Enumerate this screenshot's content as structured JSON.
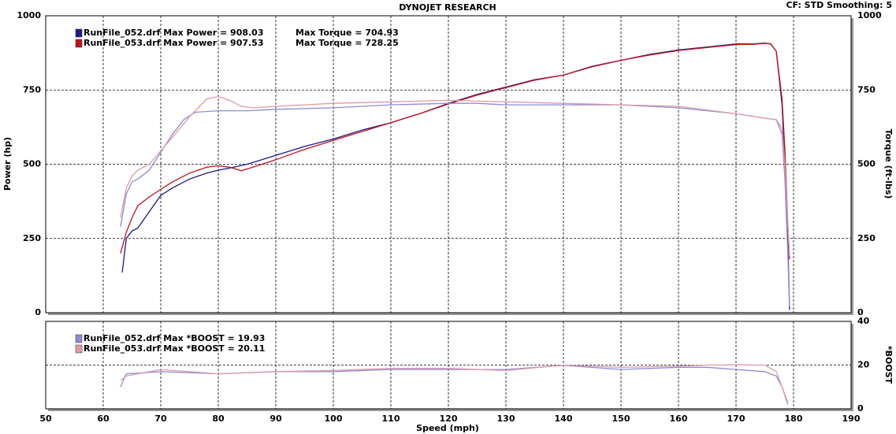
{
  "chart_data": [
    {
      "type": "line",
      "title": "DYNOJET RESEARCH",
      "subtitle": "CF: STD  Smoothing: 5",
      "ylabel": "Power (hp)",
      "y2label": "Torque (ft-lbs)",
      "xlim": [
        50,
        190
      ],
      "xticks": [
        50,
        60,
        70,
        80,
        90,
        100,
        110,
        120,
        130,
        140,
        150,
        160,
        170,
        180,
        190
      ],
      "ylim": [
        0,
        1000
      ],
      "yticks": [
        0,
        250,
        500,
        750,
        1000
      ],
      "y2lim": [
        0,
        1000
      ],
      "y2ticks": [
        0,
        250,
        500,
        750,
        1000
      ],
      "grid": true,
      "series": [
        {
          "name": "RunFile_052.drf Max Power = 908.03",
          "color": "#1a1a8c",
          "axis": "y",
          "x": [
            63.3,
            64,
            65,
            66,
            68,
            70,
            72,
            75,
            78,
            80,
            82,
            85,
            90,
            95,
            100,
            105,
            110,
            115,
            120,
            125,
            130,
            135,
            140,
            145,
            150,
            155,
            160,
            165,
            170,
            173,
            175,
            176,
            177,
            178,
            178.5,
            179,
            179.3
          ],
          "values": [
            135,
            250,
            275,
            285,
            340,
            395,
            420,
            450,
            470,
            480,
            487,
            500,
            530,
            560,
            585,
            615,
            640,
            670,
            705,
            735,
            760,
            785,
            800,
            830,
            850,
            870,
            885,
            895,
            905,
            905,
            908,
            905,
            880,
            700,
            500,
            250,
            10
          ]
        },
        {
          "name": "RunFile_053.drf Max Power = 907.53",
          "color": "#c0141c",
          "axis": "y",
          "x": [
            63,
            64,
            65,
            66,
            68,
            70,
            72,
            75,
            78,
            80,
            82,
            84,
            86,
            90,
            95,
            100,
            105,
            110,
            115,
            120,
            125,
            130,
            135,
            140,
            145,
            150,
            155,
            160,
            165,
            170,
            173,
            175,
            176,
            177,
            178,
            178.5,
            179,
            179.3
          ],
          "values": [
            200,
            270,
            320,
            360,
            390,
            415,
            440,
            470,
            490,
            495,
            490,
            478,
            490,
            515,
            550,
            580,
            610,
            640,
            670,
            703,
            733,
            758,
            783,
            800,
            828,
            850,
            868,
            883,
            893,
            903,
            904,
            907,
            906,
            880,
            720,
            550,
            300,
            180
          ]
        },
        {
          "name": "Max Torque = 704.93",
          "color": "#8c8cd8",
          "axis": "y2",
          "x": [
            63,
            64,
            65,
            66,
            68,
            70,
            72,
            74,
            76,
            80,
            85,
            90,
            100,
            110,
            120,
            125,
            130,
            140,
            150,
            160,
            170,
            175,
            177,
            178,
            178.5,
            179,
            179.3
          ],
          "values": [
            290,
            400,
            440,
            450,
            480,
            540,
            600,
            650,
            675,
            680,
            680,
            685,
            690,
            700,
            705,
            705,
            700,
            700,
            700,
            690,
            670,
            655,
            650,
            600,
            450,
            200,
            20
          ]
        },
        {
          "name": "Max Torque = 728.25",
          "color": "#e09aa8",
          "axis": "y2",
          "x": [
            63,
            64,
            65,
            66,
            68,
            70,
            72,
            75,
            78,
            80,
            82,
            84,
            86,
            90,
            100,
            110,
            120,
            130,
            140,
            150,
            160,
            170,
            175,
            177,
            178,
            178.5,
            179,
            179.3
          ],
          "values": [
            320,
            420,
            460,
            480,
            500,
            545,
            590,
            660,
            720,
            728,
            715,
            695,
            690,
            695,
            705,
            710,
            715,
            710,
            705,
            700,
            695,
            670,
            655,
            650,
            620,
            500,
            300,
            190
          ]
        }
      ]
    },
    {
      "type": "line",
      "xlabel": "Speed (mph)",
      "y2label": "*BOOST",
      "xlim": [
        50,
        190
      ],
      "xticks": [
        50,
        60,
        70,
        80,
        90,
        100,
        110,
        120,
        130,
        140,
        150,
        160,
        170,
        180,
        190
      ],
      "y2lim": [
        0,
        40
      ],
      "y2ticks": [
        0,
        20,
        40
      ],
      "grid": true,
      "series": [
        {
          "name": "RunFile_052.drf Max *BOOST = 19.93",
          "color": "#8c8cd8",
          "axis": "y2",
          "x": [
            63,
            64,
            70,
            80,
            90,
            100,
            110,
            120,
            130,
            140,
            150,
            160,
            165,
            170,
            175,
            177,
            178,
            179
          ],
          "values": [
            10,
            16,
            17,
            16,
            17,
            17,
            18,
            18,
            18,
            19.9,
            18,
            19,
            19,
            18,
            17,
            15,
            10,
            2
          ]
        },
        {
          "name": "RunFile_053.drf Max *BOOST = 20.11",
          "color": "#e09aa8",
          "axis": "y2",
          "x": [
            63,
            64,
            70,
            80,
            90,
            100,
            110,
            120,
            130,
            140,
            150,
            160,
            165,
            170,
            175,
            177,
            178,
            179
          ],
          "values": [
            13,
            15,
            18,
            16,
            17,
            17.5,
            18.5,
            18.5,
            17.5,
            20,
            19,
            19.5,
            20,
            20.11,
            20,
            17,
            10,
            3
          ]
        }
      ]
    }
  ]
}
